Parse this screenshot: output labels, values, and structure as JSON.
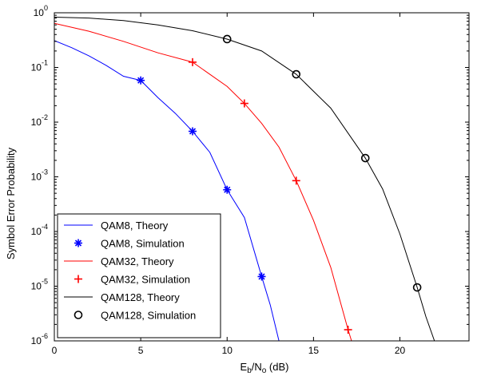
{
  "chart_data": {
    "type": "line",
    "xlabel_main": "E",
    "xlabel_sub1": "b",
    "xlabel_mid": "/N",
    "xlabel_sub2": "o",
    "xlabel_tail": " (dB)",
    "ylabel": "Symbol Error Probability",
    "xlim": [
      0,
      24
    ],
    "ylim": [
      1e-06,
      1
    ],
    "yscale": "log",
    "x_ticks": [
      0,
      5,
      10,
      15,
      20
    ],
    "y_tick_exponents": [
      0,
      -1,
      -2,
      -3,
      -4,
      -5,
      -6
    ],
    "y_tick_base": "10",
    "grid": false,
    "legend_position": "bottom-left",
    "series": [
      {
        "name": "QAM8, Theory",
        "color": "#0000ff",
        "kind": "line",
        "points": [
          [
            0,
            0.31
          ],
          [
            1,
            0.23
          ],
          [
            2,
            0.163
          ],
          [
            3,
            0.109
          ],
          [
            4,
            0.069
          ],
          [
            5,
            0.058
          ],
          [
            6,
            0.028
          ],
          [
            7,
            0.0145
          ],
          [
            8,
            0.0068
          ],
          [
            9,
            0.0028
          ],
          [
            10,
            0.00058
          ],
          [
            11,
            0.00018
          ],
          [
            12,
            1.5e-05
          ],
          [
            12.5,
            4.5e-06
          ],
          [
            13,
            1e-06
          ]
        ]
      },
      {
        "name": "QAM8, Simulation",
        "color": "#0000ff",
        "kind": "marker",
        "marker": "star",
        "points": [
          [
            5,
            0.058
          ],
          [
            8,
            0.0068
          ],
          [
            10,
            0.00058
          ],
          [
            12,
            1.5e-05
          ]
        ]
      },
      {
        "name": "QAM32, Theory",
        "color": "#ff0000",
        "kind": "line",
        "points": [
          [
            0,
            0.64
          ],
          [
            2,
            0.46
          ],
          [
            4,
            0.3
          ],
          [
            6,
            0.185
          ],
          [
            8,
            0.125
          ],
          [
            9,
            0.075
          ],
          [
            10,
            0.045
          ],
          [
            11,
            0.022
          ],
          [
            12,
            0.0095
          ],
          [
            13,
            0.0035
          ],
          [
            14,
            0.00085
          ],
          [
            15,
            0.00016
          ],
          [
            16,
            2.2e-05
          ],
          [
            17,
            1.6e-06
          ],
          [
            17.2,
            1e-06
          ]
        ]
      },
      {
        "name": "QAM32, Simulation",
        "color": "#ff0000",
        "kind": "marker",
        "marker": "plus",
        "points": [
          [
            8,
            0.125
          ],
          [
            11,
            0.022
          ],
          [
            14,
            0.00085
          ],
          [
            17,
            1.6e-06
          ]
        ]
      },
      {
        "name": "QAM128, Theory",
        "color": "#000000",
        "kind": "line",
        "points": [
          [
            0,
            0.83
          ],
          [
            2,
            0.8
          ],
          [
            4,
            0.72
          ],
          [
            6,
            0.6
          ],
          [
            8,
            0.47
          ],
          [
            10,
            0.33
          ],
          [
            12,
            0.2
          ],
          [
            14,
            0.075
          ],
          [
            16,
            0.018
          ],
          [
            18,
            0.0022
          ],
          [
            19,
            0.0006
          ],
          [
            20,
            9e-05
          ],
          [
            21,
            9.5e-06
          ],
          [
            21.5,
            2.8e-06
          ],
          [
            22,
            1e-06
          ]
        ]
      },
      {
        "name": "QAM128, Simulation",
        "color": "#000000",
        "kind": "marker",
        "marker": "circle",
        "points": [
          [
            10,
            0.33
          ],
          [
            14,
            0.075
          ],
          [
            18,
            0.0022
          ],
          [
            21,
            9.5e-06
          ]
        ]
      }
    ]
  }
}
